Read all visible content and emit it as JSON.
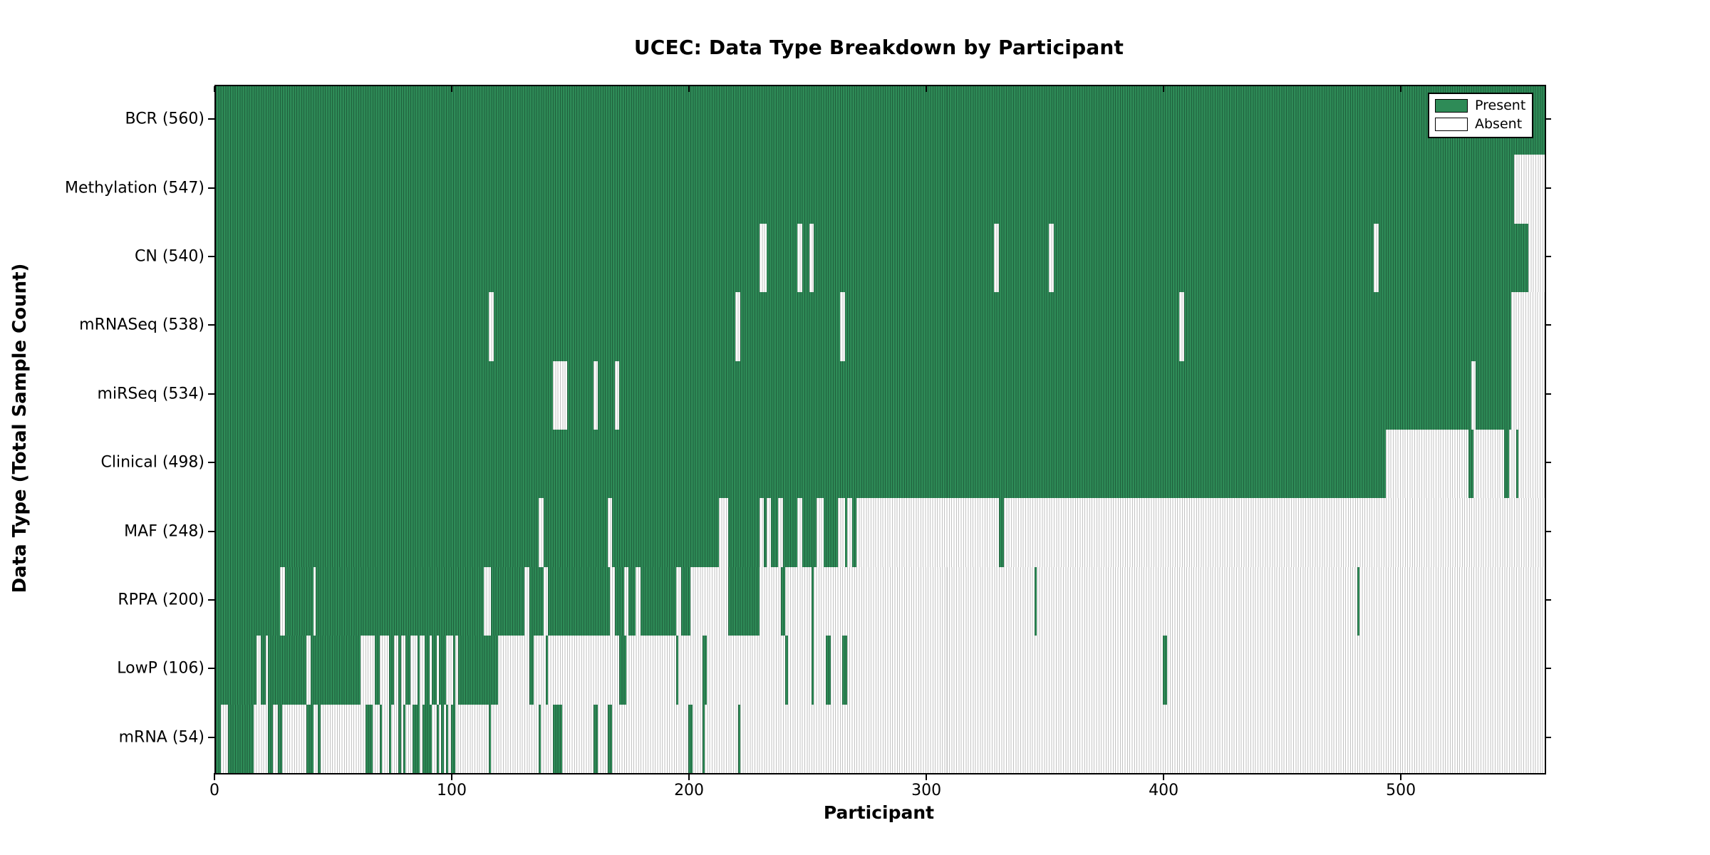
{
  "chart_data": {
    "type": "heatmap",
    "title": "UCEC: Data Type Breakdown by Participant",
    "xlabel": "Participant",
    "ylabel": "Data Type (Total Sample Count)",
    "x_ticks": [
      0,
      100,
      200,
      300,
      400,
      500
    ],
    "x_max": 560,
    "grid": false,
    "colors": {
      "present": "#2e8b57",
      "present_line": "#1f5f3c",
      "absent": "#ffffff",
      "absent_line": "#c2c2c2",
      "axis": "#000000",
      "row_divider": "#1c1c1c"
    },
    "legend": {
      "position": "top-right",
      "entries": [
        {
          "label": "Present",
          "state": "present",
          "color": "#2e8b57"
        },
        {
          "label": "Absent",
          "state": "absent",
          "color": "#ffffff"
        }
      ]
    },
    "rows": [
      {
        "label": "BCR (560)",
        "data_type": "BCR",
        "count": 560,
        "base": "present",
        "runs_state": "absent",
        "runs": []
      },
      {
        "label": "Methylation (547)",
        "data_type": "Methylation",
        "count": 547,
        "base": "present",
        "runs_state": "absent",
        "runs": [
          [
            547,
            560
          ]
        ]
      },
      {
        "label": "CN (540)",
        "data_type": "CN",
        "count": 540,
        "base": "present",
        "runs_state": "absent",
        "runs": [
          [
            229,
            232
          ],
          [
            245,
            247
          ],
          [
            250,
            252
          ],
          [
            328,
            330
          ],
          [
            351,
            353
          ],
          [
            488,
            490
          ],
          [
            553,
            560
          ]
        ]
      },
      {
        "label": "mRNASeq (538)",
        "data_type": "mRNASeq",
        "count": 538,
        "base": "present",
        "runs_state": "absent",
        "runs": [
          [
            115,
            117
          ],
          [
            219,
            221
          ],
          [
            263,
            265
          ],
          [
            406,
            408
          ],
          [
            546,
            560
          ]
        ]
      },
      {
        "label": "miRSeq (534)",
        "data_type": "miRSeq",
        "count": 534,
        "base": "present",
        "runs_state": "absent",
        "runs": [
          [
            142,
            148
          ],
          [
            159,
            161
          ],
          [
            168,
            170
          ],
          [
            529,
            531
          ],
          [
            546,
            560
          ]
        ]
      },
      {
        "label": "Clinical (498)",
        "data_type": "Clinical",
        "count": 498,
        "base": "present",
        "runs_state": "absent",
        "runs": [
          [
            493,
            528
          ],
          [
            530,
            543
          ],
          [
            545,
            548
          ],
          [
            549,
            560
          ]
        ]
      },
      {
        "label": "MAF (248)",
        "data_type": "MAF",
        "count": 248,
        "base": "present",
        "runs_state": "absent",
        "runs": [
          [
            136,
            138
          ],
          [
            165,
            167
          ],
          [
            212,
            216
          ],
          [
            229,
            231
          ],
          [
            232,
            234
          ],
          [
            237,
            239
          ],
          [
            245,
            247
          ],
          [
            253,
            256
          ],
          [
            262,
            265
          ],
          [
            266,
            268
          ],
          [
            270,
            330
          ],
          [
            332,
            560
          ]
        ]
      },
      {
        "label": "RPPA (200)",
        "data_type": "RPPA",
        "count": 200,
        "base": "absent",
        "runs_state": "present",
        "runs": [
          [
            0,
            27
          ],
          [
            29,
            41
          ],
          [
            42,
            113
          ],
          [
            116,
            130
          ],
          [
            132,
            138
          ],
          [
            140,
            166
          ],
          [
            168,
            172
          ],
          [
            174,
            177
          ],
          [
            179,
            194
          ],
          [
            196,
            200
          ],
          [
            216,
            229
          ],
          [
            238,
            240
          ],
          [
            251,
            252
          ],
          [
            345,
            346
          ],
          [
            481,
            482
          ]
        ]
      },
      {
        "label": "LowP (106)",
        "data_type": "LowP",
        "count": 106,
        "base": "absent",
        "runs_state": "present",
        "runs": [
          [
            0,
            17
          ],
          [
            19,
            21
          ],
          [
            22,
            38
          ],
          [
            40,
            61
          ],
          [
            67,
            69
          ],
          [
            73,
            75
          ],
          [
            77,
            78
          ],
          [
            80,
            82
          ],
          [
            85,
            86
          ],
          [
            88,
            90
          ],
          [
            91,
            93
          ],
          [
            94,
            97
          ],
          [
            100,
            101
          ],
          [
            102,
            119
          ],
          [
            132,
            134
          ],
          [
            139,
            140
          ],
          [
            170,
            173
          ],
          [
            194,
            195
          ],
          [
            205,
            207
          ],
          [
            240,
            241
          ],
          [
            251,
            252
          ],
          [
            257,
            259
          ],
          [
            264,
            266
          ],
          [
            399,
            401
          ]
        ]
      },
      {
        "label": "mRNA (54)",
        "data_type": "mRNA",
        "count": 54,
        "base": "absent",
        "runs_state": "present",
        "runs": [
          [
            0,
            2
          ],
          [
            5,
            16
          ],
          [
            22,
            24
          ],
          [
            26,
            28
          ],
          [
            38,
            41
          ],
          [
            43,
            44
          ],
          [
            63,
            66
          ],
          [
            69,
            70
          ],
          [
            73,
            74
          ],
          [
            77,
            78
          ],
          [
            79,
            80
          ],
          [
            83,
            86
          ],
          [
            87,
            91
          ],
          [
            93,
            94
          ],
          [
            95,
            96
          ],
          [
            97,
            98
          ],
          [
            99,
            101
          ],
          [
            115,
            116
          ],
          [
            136,
            137
          ],
          [
            142,
            146
          ],
          [
            159,
            161
          ],
          [
            165,
            167
          ],
          [
            199,
            201
          ],
          [
            205,
            206
          ],
          [
            220,
            221
          ]
        ]
      }
    ]
  }
}
